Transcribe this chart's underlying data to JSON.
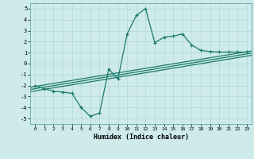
{
  "xlabel": "Humidex (Indice chaleur)",
  "background_color": "#ceeaea",
  "grid_color": "#b0d8d8",
  "line_color": "#1a7a6a",
  "xlim": [
    -0.5,
    23.5
  ],
  "ylim": [
    -5.5,
    5.5
  ],
  "xticks": [
    0,
    1,
    2,
    3,
    4,
    5,
    6,
    7,
    8,
    9,
    10,
    11,
    12,
    13,
    14,
    15,
    16,
    17,
    18,
    19,
    20,
    21,
    22,
    23
  ],
  "yticks": [
    -5,
    -4,
    -3,
    -2,
    -1,
    0,
    1,
    2,
    3,
    4,
    5
  ],
  "series": [
    [
      0,
      -2.0
    ],
    [
      1,
      -2.3
    ],
    [
      2,
      -2.5
    ],
    [
      3,
      -2.6
    ],
    [
      4,
      -2.7
    ],
    [
      5,
      -4.0
    ],
    [
      6,
      -4.8
    ],
    [
      7,
      -4.5
    ],
    [
      8,
      -0.5
    ],
    [
      9,
      -1.4
    ],
    [
      10,
      2.7
    ],
    [
      11,
      4.4
    ],
    [
      12,
      5.0
    ],
    [
      13,
      1.9
    ],
    [
      14,
      2.4
    ],
    [
      15,
      2.5
    ],
    [
      16,
      2.7
    ],
    [
      17,
      1.7
    ],
    [
      18,
      1.2
    ],
    [
      19,
      1.1
    ],
    [
      20,
      1.05
    ],
    [
      21,
      1.05
    ],
    [
      22,
      1.05
    ],
    [
      23,
      1.05
    ]
  ],
  "line1": [
    [
      -0.5,
      -2.15
    ],
    [
      23.5,
      1.15
    ]
  ],
  "line2": [
    [
      -0.5,
      -2.35
    ],
    [
      23.5,
      0.95
    ]
  ],
  "line3": [
    [
      -0.5,
      -2.55
    ],
    [
      23.5,
      0.75
    ]
  ]
}
